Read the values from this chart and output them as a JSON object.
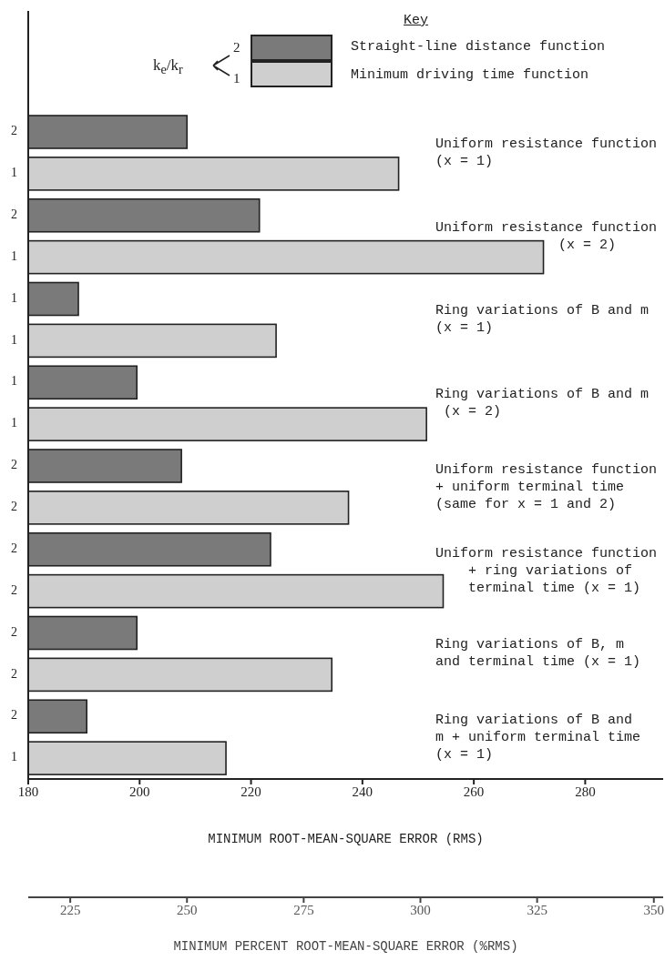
{
  "chart_data": {
    "type": "bar",
    "orientation": "horizontal",
    "categories": [
      "2",
      "1",
      "2",
      "1",
      "1",
      "1",
      "1",
      "1",
      "2",
      "2",
      "2",
      "2",
      "2",
      "2",
      "2",
      "1"
    ],
    "series": [
      {
        "name": "Straight-line distance function",
        "color": "#7a7a7a",
        "values": [
          208.5,
          null,
          221.5,
          null,
          189,
          null,
          199.5,
          null,
          207.5,
          null,
          223.5,
          null,
          199.5,
          null,
          190.5,
          null
        ]
      },
      {
        "name": "Minimum driving time function",
        "color": "#cfcfcf",
        "values": [
          null,
          246.5,
          null,
          272.5,
          null,
          224.5,
          null,
          251.5,
          null,
          237.5,
          null,
          254.5,
          null,
          234.5,
          null,
          215.5
        ]
      }
    ],
    "xlim": [
      180,
      294
    ],
    "xticks": [
      180,
      200,
      220,
      240,
      260,
      280
    ],
    "x2lim": [
      216,
      352
    ],
    "x2ticks": [
      225,
      250,
      275,
      300,
      325,
      350
    ],
    "xlabel": "MINIMUM ROOT-MEAN-SQUARE ERROR (RMS)",
    "x2label": "MINIMUM PERCENT ROOT-MEAN-SQUARE ERROR (%RMS)",
    "ylabel": "k$_{e}$/k$_{r}$",
    "legend_title": "Key",
    "legend": "top",
    "annotations": [
      "Uniform resistance function\n(x = 1)",
      "Uniform resistance function\n               (x = 2)",
      "Ring variations of B and m\n(x = 1)",
      "Ring variations of B and m\n (x = 2)",
      "Uniform resistance function\n+ uniform terminal time\n(same for x = 1 and 2)",
      "Uniform resistance function\n    + ring variations of\n    terminal time (x = 1)",
      "Ring variations of B, m\nand terminal time (x = 1)",
      "Ring variations of B and\nm + uniform terminal time\n(x = 1)",
      "2",
      "1"
    ]
  }
}
